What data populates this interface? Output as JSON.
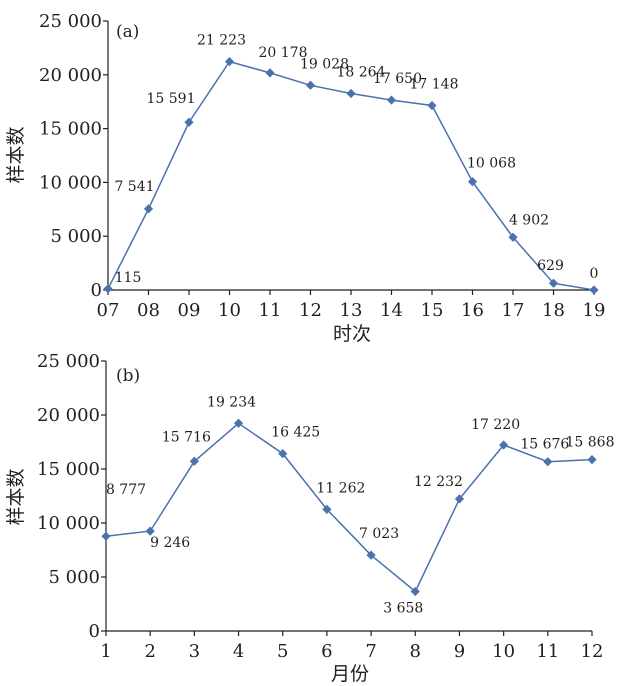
{
  "chart_data": [
    {
      "type": "line",
      "panel_label": "(a)",
      "xlabel": "时次",
      "ylabel": "样本数",
      "ylim": [
        0,
        25000
      ],
      "y_ticks": [
        "0",
        "5 000",
        "10 000",
        "15 000",
        "20 000",
        "25 000"
      ],
      "categories": [
        "07",
        "08",
        "09",
        "10",
        "11",
        "12",
        "13",
        "14",
        "15",
        "16",
        "17",
        "18",
        "19"
      ],
      "values": [
        115,
        7541,
        15591,
        21223,
        20178,
        19028,
        18264,
        17650,
        17148,
        10068,
        4902,
        629,
        0
      ],
      "data_labels": [
        "115",
        "7 541",
        "15 591",
        "21 223",
        "20 178",
        "19 028",
        "18 264",
        "17 650",
        "17 148",
        "10 068",
        "4 902",
        "629",
        "0"
      ],
      "grid": false,
      "series_color": "#4a72ad"
    },
    {
      "type": "line",
      "panel_label": "(b)",
      "xlabel": "月份",
      "ylabel": "样本数",
      "ylim": [
        0,
        25000
      ],
      "y_ticks": [
        "0",
        "5 000",
        "10 000",
        "15 000",
        "20 000",
        "25 000"
      ],
      "categories": [
        "1",
        "2",
        "3",
        "4",
        "5",
        "6",
        "7",
        "8",
        "9",
        "10",
        "11",
        "12"
      ],
      "values": [
        8777,
        9246,
        15716,
        19234,
        16425,
        11262,
        7023,
        3658,
        12232,
        17220,
        15676,
        15868
      ],
      "data_labels": [
        "8 777",
        "9 246",
        "15 716",
        "19 234",
        "16 425",
        "11 262",
        "7 023",
        "3 658",
        "12 232",
        "17 220",
        "15 676",
        "15 868"
      ],
      "grid": false,
      "series_color": "#4a72ad"
    }
  ]
}
